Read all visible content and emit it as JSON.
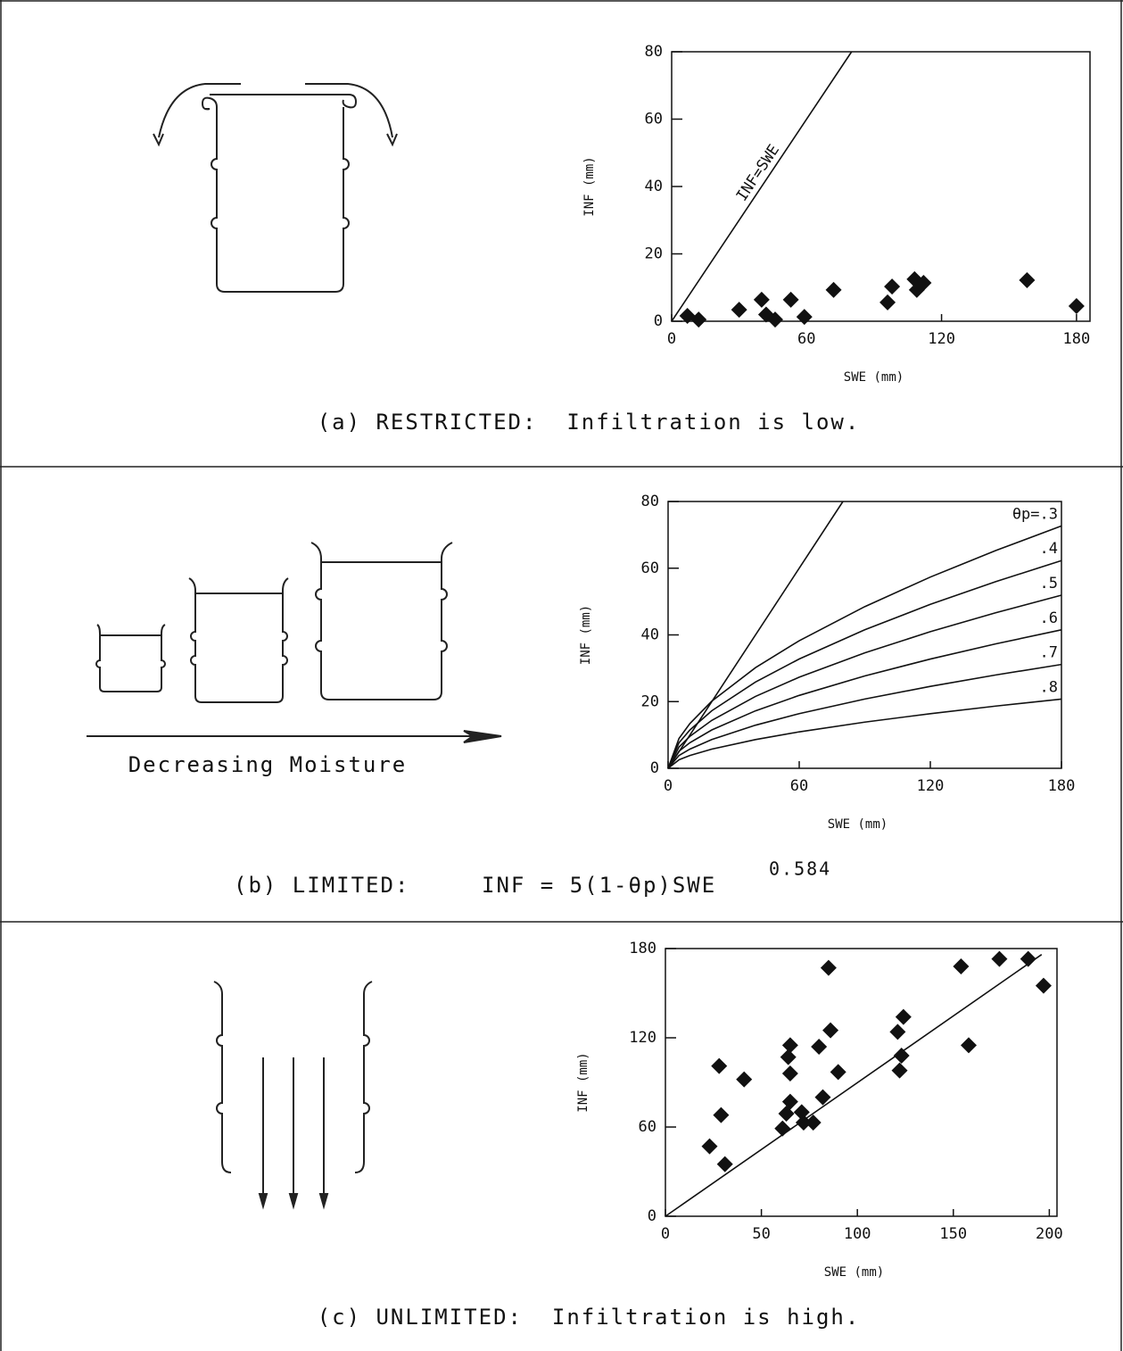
{
  "chart_data": [
    {
      "type": "scatter",
      "xlabel": "SWE (mm)",
      "ylabel": "INF (mm)",
      "xlim": [
        0,
        186
      ],
      "ylim": [
        0,
        80
      ],
      "xticks": [
        0,
        60,
        120,
        180
      ],
      "yticks": [
        0,
        20,
        40,
        60,
        80
      ],
      "caption": "(a) RESTRICTED:  Infiltration is low.",
      "series": [
        {
          "type": "scatter",
          "color": "#111",
          "x": [
            7,
            12,
            30,
            40,
            42,
            46,
            53,
            59,
            72,
            96,
            98,
            108,
            109,
            112,
            158,
            180
          ],
          "values": [
            1.6,
            0.5,
            3.4,
            6.4,
            2,
            0.5,
            6.4,
            1.3,
            9.3,
            5.6,
            10.3,
            12.5,
            9.3,
            11.4,
            12.2,
            4.5
          ]
        },
        {
          "type": "line",
          "name": "INF=SWE",
          "color": "#111",
          "x": [
            0,
            80
          ],
          "values": [
            0,
            80
          ]
        }
      ]
    },
    {
      "type": "line",
      "xlabel": "SWE (mm)",
      "ylabel": "INF (mm)",
      "xlim": [
        0,
        180
      ],
      "ylim": [
        0,
        80
      ],
      "xticks": [
        0,
        60,
        120,
        180
      ],
      "yticks": [
        0,
        20,
        40,
        60,
        80
      ],
      "caption": "(b) LIMITED:",
      "formula": "INF = 5(1-θp)SWE",
      "formula_exponent": "0.584",
      "x": [
        0,
        5,
        10,
        20,
        40,
        60,
        90,
        120,
        150,
        180
      ],
      "series": [
        {
          "type": "line",
          "color": "#111",
          "x": [
            0,
            80
          ],
          "values": [
            0,
            80
          ]
        },
        {
          "type": "line",
          "name": "θp=.3",
          "color": "#111",
          "values": [
            0,
            8.96,
            13.43,
            20.13,
            30.18,
            38.25,
            48.47,
            57.34,
            65.31,
            72.66
          ]
        },
        {
          "type": "line",
          "name": ".4",
          "color": "#111",
          "values": [
            0,
            7.68,
            11.51,
            17.26,
            25.87,
            32.78,
            41.54,
            49.15,
            55.98,
            62.28
          ]
        },
        {
          "type": "line",
          "name": ".5",
          "color": "#111",
          "values": [
            0,
            6.4,
            9.6,
            14.38,
            21.56,
            27.32,
            34.62,
            40.96,
            46.65,
            51.9
          ]
        },
        {
          "type": "line",
          "name": ".6",
          "color": "#111",
          "values": [
            0,
            5.12,
            7.68,
            11.5,
            17.24,
            21.86,
            27.7,
            32.76,
            37.32,
            41.52
          ]
        },
        {
          "type": "line",
          "name": ".7",
          "color": "#111",
          "values": [
            0,
            3.84,
            5.76,
            8.63,
            12.93,
            16.39,
            20.77,
            24.57,
            27.99,
            31.14
          ]
        },
        {
          "type": "line",
          "name": ".8",
          "color": "#111",
          "values": [
            0,
            2.56,
            3.84,
            5.75,
            8.62,
            10.93,
            13.85,
            16.38,
            18.66,
            20.76
          ]
        }
      ]
    },
    {
      "type": "scatter",
      "xlabel": "SWE (mm)",
      "ylabel": "INF (mm)",
      "xlim": [
        0,
        204
      ],
      "ylim": [
        0,
        180
      ],
      "xticks": [
        0,
        50,
        100,
        150,
        200
      ],
      "yticks": [
        0,
        60,
        120,
        180
      ],
      "caption": "(c) UNLIMITED:  Infiltration is high.",
      "series": [
        {
          "type": "scatter",
          "color": "#111",
          "x": [
            23,
            28,
            29,
            31,
            41,
            61,
            63,
            65,
            64,
            65,
            65,
            71,
            72,
            77,
            80,
            82,
            85,
            86,
            90,
            121,
            122,
            123,
            124,
            154,
            158,
            174,
            189,
            197
          ],
          "values": [
            47,
            101,
            68,
            35,
            92,
            59,
            69,
            115,
            107,
            96,
            77,
            70,
            63,
            63,
            114,
            80,
            167,
            125,
            97,
            124,
            98,
            108,
            134,
            168,
            115,
            173,
            173,
            155
          ]
        },
        {
          "type": "line",
          "color": "#111",
          "x": [
            0,
            196
          ],
          "values": [
            0,
            176
          ]
        }
      ]
    }
  ],
  "diagram": {
    "label": "Decreasing Moisture"
  }
}
